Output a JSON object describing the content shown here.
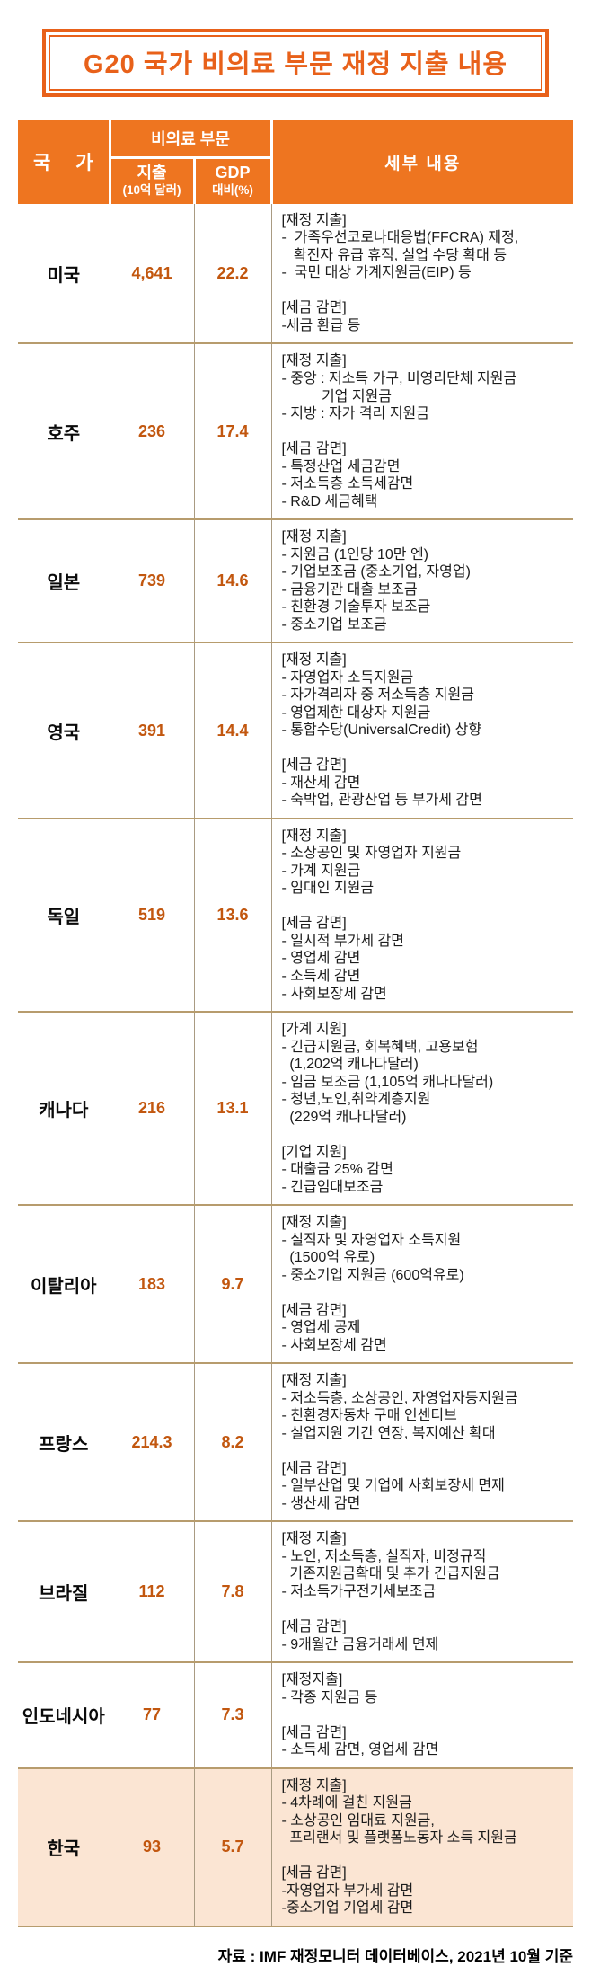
{
  "title": "G20 국가 비의료 부문 재정 지출 내용",
  "colors": {
    "header_orange": "#ee7520",
    "title_orange": "#e8611a",
    "number_brown": "#c2570f",
    "grid_tan": "#b79c6d",
    "vline_tan": "#a99b82",
    "korea_bg": "#fbe5d3"
  },
  "header": {
    "country": "국 가",
    "group": "비의료 부문",
    "spending_label": "지출",
    "spending_unit": "(10억 달러)",
    "gdp_label": "GDP",
    "gdp_unit": "대비(%)",
    "details": "세부 내용"
  },
  "countries": [
    {
      "name": "미국",
      "spending": "4,641",
      "gdp_ratio": "22.2",
      "details": "[재정 지출]\n-  가족우선코로나대응법(FFCRA) 제정,\n   확진자 유급 휴직, 실업 수당 확대 등\n-  국민 대상 가계지원금(EIP) 등\n\n[세금 감면]\n-세금 환급 등"
    },
    {
      "name": "호주",
      "spending": "236",
      "gdp_ratio": "17.4",
      "details": "[재정 지출]\n- 중앙 : 저소득 가구, 비영리단체 지원금\n          기업 지원금\n- 지방 : 자가 격리 지원금\n\n[세금 감면]\n- 특정산업 세금감면\n- 저소득층 소득세감면\n- R&D 세금혜택"
    },
    {
      "name": "일본",
      "spending": "739",
      "gdp_ratio": "14.6",
      "details": "[재정 지출]\n- 지원금 (1인당 10만 엔)\n- 기업보조금 (중소기업, 자영업)\n- 금융기관 대출 보조금\n- 친환경 기술투자 보조금\n- 중소기업 보조금"
    },
    {
      "name": "영국",
      "spending": "391",
      "gdp_ratio": "14.4",
      "details": "[재정 지출]\n- 자영업자 소득지원금\n- 자가격리자 중 저소득층 지원금\n- 영업제한 대상자 지원금\n- 통합수당(UniversalCredit) 상향\n\n[세금 감면]\n- 재산세 감면\n- 숙박업, 관광산업 등 부가세 감면"
    },
    {
      "name": "독일",
      "spending": "519",
      "gdp_ratio": "13.6",
      "details": "[재정 지출]\n- 소상공인 및 자영업자 지원금\n- 가계 지원금\n- 임대인 지원금\n\n[세금 감면]\n- 일시적 부가세 감면\n- 영업세 감면\n- 소득세 감면\n- 사회보장세 감면"
    },
    {
      "name": "캐나다",
      "spending": "216",
      "gdp_ratio": "13.1",
      "details": "[가계 지원]\n- 긴급지원금, 회복혜택, 고용보험\n  (1,202억 캐나다달러)\n- 임금 보조금 (1,105억 캐나다달러)\n- 청년,노인,취약계층지원\n  (229억 캐나다달러)\n\n[기업 지원]\n- 대출금 25% 감면\n- 긴급임대보조금"
    },
    {
      "name": "이탈리아",
      "spending": "183",
      "gdp_ratio": "9.7",
      "details": "[재정 지출]\n- 실직자 및 자영업자 소득지원\n  (1500억 유로)\n- 중소기업 지원금 (600억유로)\n\n[세금 감면]\n- 영업세 공제\n- 사회보장세 감면"
    },
    {
      "name": "프랑스",
      "spending": "214.3",
      "gdp_ratio": "8.2",
      "details": "[재정 지출]\n- 저소득층, 소상공인, 자영업자등지원금\n- 친환경자동차 구매 인센티브\n- 실업지원 기간 연장, 복지예산 확대\n\n[세금 감면]\n- 일부산업 및 기업에 사회보장세 면제\n- 생산세 감면"
    },
    {
      "name": "브라질",
      "spending": "112",
      "gdp_ratio": "7.8",
      "details": "[재정 지출]\n- 노인, 저소득층, 실직자, 비정규직\n  기존지원금확대 및 추가 긴급지원금\n- 저소득가구전기세보조금\n\n[세금 감면]\n- 9개월간 금융거래세 면제"
    },
    {
      "name": "인도네시아",
      "spending": "77",
      "gdp_ratio": "7.3",
      "details": "[재정지출]\n- 각종 지원금 등\n\n[세금 감면]\n- 소득세 감면, 영업세 감면"
    },
    {
      "name": "한국",
      "spending": "93",
      "gdp_ratio": "5.7",
      "details": "[재정 지출]\n- 4차례에 걸친 지원금\n- 소상공인 임대료 지원금,\n  프리랜서 및 플랫폼노동자 소득 지원금\n\n[세금 감면]\n-자영업자 부가세 감면\n-중소기업 기업세 감면"
    }
  ],
  "source": "자료 : IMF 재정모니터 데이터베이스, 2021년 10월 기준"
}
